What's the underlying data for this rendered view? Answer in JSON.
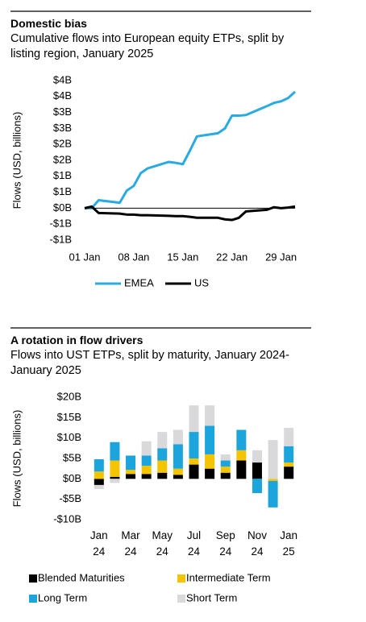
{
  "chart_data": [
    {
      "type": "line",
      "title": "Domestic bias",
      "subtitle": "Cumulative flows into European equity ETPs, split by listing region, January 2025",
      "y_label": "Flows (USD, billions)",
      "x": [
        1,
        2,
        3,
        6,
        7,
        8,
        9,
        10,
        13,
        14,
        15,
        16,
        17,
        20,
        21,
        22,
        23,
        24,
        27,
        28,
        29,
        30,
        31
      ],
      "xlim": [
        1,
        31
      ],
      "xticks": [
        {
          "value": 1,
          "label": "01 Jan"
        },
        {
          "value": 8,
          "label": "08 Jan"
        },
        {
          "value": 15,
          "label": "15 Jan"
        },
        {
          "value": 22,
          "label": "22 Jan"
        },
        {
          "value": 29,
          "label": "29 Jan"
        }
      ],
      "ylim": [
        -1,
        4
      ],
      "yticks": [
        {
          "value": -1,
          "label": "-$1B"
        },
        {
          "value": -0.5,
          "label": "-$1B"
        },
        {
          "value": 0,
          "label": "$0B"
        },
        {
          "value": 0.5,
          "label": "$1B"
        },
        {
          "value": 1,
          "label": "$1B"
        },
        {
          "value": 1.5,
          "label": "$2B"
        },
        {
          "value": 2,
          "label": "$2B"
        },
        {
          "value": 2.5,
          "label": "$3B"
        },
        {
          "value": 3,
          "label": "$3B"
        },
        {
          "value": 3.5,
          "label": "$4B"
        },
        {
          "value": 4,
          "label": "$4B"
        }
      ],
      "series": [
        {
          "name": "EMEA",
          "color": "#29abe2",
          "values": [
            0,
            0,
            0.25,
            0.17,
            0.55,
            0.7,
            1.1,
            1.25,
            1.45,
            1.42,
            1.38,
            1.8,
            2.25,
            2.35,
            2.5,
            2.9,
            2.9,
            2.92,
            3.2,
            3.3,
            3.35,
            3.45,
            3.65
          ]
        },
        {
          "name": "US",
          "color": "#000000",
          "values": [
            0,
            0.05,
            -0.15,
            -0.17,
            -0.2,
            -0.2,
            -0.22,
            -0.22,
            -0.24,
            -0.25,
            -0.25,
            -0.27,
            -0.3,
            -0.3,
            -0.35,
            -0.37,
            -0.3,
            -0.1,
            -0.05,
            0.03,
            0,
            0.02,
            0.05
          ]
        }
      ]
    },
    {
      "type": "bar",
      "stacked": true,
      "title": "A rotation in flow drivers",
      "subtitle": "Flows into UST ETPs, split by maturity, January 2024-January 2025",
      "y_label": "Flows (USD, billions)",
      "categories": [
        "Jan 24",
        null,
        "Mar 24",
        null,
        "May 24",
        null,
        "Jul 24",
        null,
        "Sep 24",
        null,
        "Nov 24",
        null,
        "Jan 25"
      ],
      "ylim": [
        -10,
        20
      ],
      "yticks": [
        {
          "value": -10,
          "label": "-$10B"
        },
        {
          "value": -5,
          "label": "-$5B"
        },
        {
          "value": 0,
          "label": "$0B"
        },
        {
          "value": 5,
          "label": "$5B"
        },
        {
          "value": 10,
          "label": "$10B"
        },
        {
          "value": 15,
          "label": "$15B"
        },
        {
          "value": 20,
          "label": "$20B"
        }
      ],
      "series": [
        {
          "name": "Blended Maturities",
          "color": "#000000",
          "values": [
            -1.5,
            0.5,
            1.2,
            1.2,
            1.5,
            1,
            3.5,
            2.5,
            1.5,
            4.5,
            4,
            0,
            3
          ]
        },
        {
          "name": "Intermediate Term",
          "color": "#f5c400",
          "values": [
            1.8,
            4,
            1,
            2,
            3,
            1.5,
            1.5,
            3.5,
            1.5,
            2.5,
            0,
            -0.5,
            1
          ]
        },
        {
          "name": "Long Term",
          "color": "#1ca4dd",
          "values": [
            3,
            4.5,
            3.5,
            2.5,
            3,
            6,
            6.5,
            7,
            1.5,
            5,
            -3.5,
            -6.5,
            4
          ]
        },
        {
          "name": "Short Term",
          "color": "#d9d9dc",
          "values": [
            -1,
            -1,
            0,
            3.5,
            4,
            3.5,
            6.5,
            5,
            1.5,
            0,
            3,
            9.5,
            4.5
          ]
        }
      ]
    }
  ]
}
